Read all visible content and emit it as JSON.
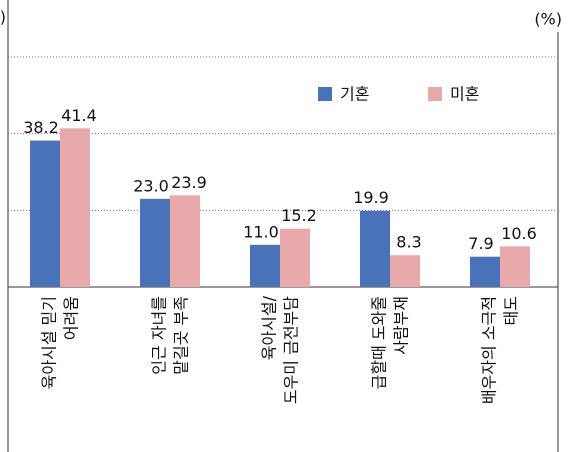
{
  "chart_data": {
    "type": "bar",
    "y_unit_left": "(%)",
    "y_unit_right": "(%)",
    "categories": [
      [
        "육아시설 믿기",
        "어려움"
      ],
      [
        "인근 자녀를",
        "맡길곳 부족"
      ],
      [
        "육아시설/",
        "도우미 금전부담"
      ],
      [
        "급할때 도와줄",
        "사람부재"
      ],
      [
        "배우자의 소극적",
        "태도"
      ]
    ],
    "series": [
      {
        "name": "기혼",
        "color": "#4a72b8",
        "values": [
          38.2,
          23.0,
          11.0,
          19.9,
          7.9
        ],
        "value_labels": [
          "38.2",
          "23.0",
          "11.0",
          "19.9",
          "7.9"
        ]
      },
      {
        "name": "미혼",
        "color": "#e8a9aa",
        "values": [
          41.4,
          23.9,
          15.2,
          8.3,
          10.6
        ],
        "value_labels": [
          "41.4",
          "23.9",
          "15.2",
          "8.3",
          "10.6"
        ]
      }
    ],
    "ylim": [
      0,
      60
    ],
    "yticks": [
      0,
      20,
      40,
      60
    ],
    "grid": true
  }
}
